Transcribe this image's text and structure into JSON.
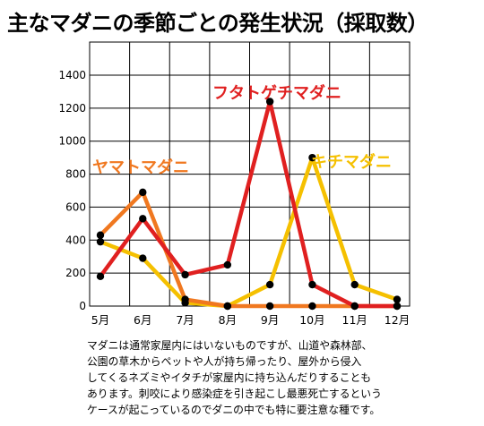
{
  "title": "主なマダニの季節ごとの発生状況（採取数）",
  "note": "マダニは通常家屋内にはいないものですが、山道や森林部、\n公園の草木からペットや人が持ち帰ったり、屋外から侵入\nしてくるネズミやイタチが家屋内に持ち込んだりすることも\nあります。刺咬により感染症を引き起こし最悪死亡するという\nケースが起こっているのでダニの中でも特に要注意な種です。",
  "chart_data": {
    "type": "line",
    "title": "主なマダニの季節ごとの発生状況（採取数）",
    "xlabel": "",
    "ylabel": "",
    "categories": [
      "5月",
      "6月",
      "7月",
      "8月",
      "9月",
      "10月",
      "11月",
      "12月"
    ],
    "ylim": [
      0,
      1400
    ],
    "yticks": [
      0,
      200,
      400,
      600,
      800,
      1000,
      1200,
      1400
    ],
    "grid": "horizontal",
    "series": [
      {
        "name": "フタトゲチマダニ",
        "color": "#e02020",
        "label_color": "#e02020",
        "values": [
          180,
          530,
          190,
          250,
          1240,
          130,
          0,
          0
        ]
      },
      {
        "name": "ヤマトマダニ",
        "color": "#f07820",
        "label_color": "#f07820",
        "values": [
          430,
          690,
          40,
          0,
          0,
          0,
          0,
          0
        ]
      },
      {
        "name": "キチマダニ",
        "color": "#f5c000",
        "label_color": "#f5c000",
        "values": [
          390,
          290,
          20,
          0,
          130,
          900,
          130,
          40
        ]
      }
    ]
  }
}
